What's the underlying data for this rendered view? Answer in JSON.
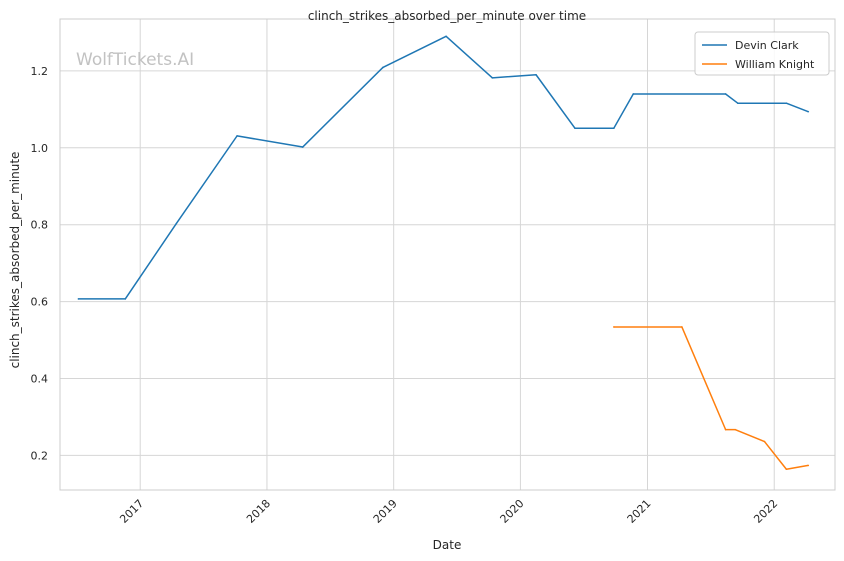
{
  "chart_data": {
    "type": "line",
    "title": "clinch_strikes_absorbed_per_minute over time",
    "xlabel": "Date",
    "ylabel": "clinch_strikes_absorbed_per_minute",
    "watermark": "WolfTickets.AI",
    "x_ticks": [
      "2017",
      "2018",
      "2019",
      "2020",
      "2021",
      "2022"
    ],
    "y_ticks": [
      "0.2",
      "0.4",
      "0.6",
      "0.8",
      "1.0",
      "1.2"
    ],
    "xlim": [
      "2016-05-15",
      "2022-06-25"
    ],
    "ylim": [
      0.11,
      1.335
    ],
    "grid": true,
    "legend_position": "top-right",
    "series": [
      {
        "name": "Devin Clark",
        "color": "#1f77b4",
        "x": [
          "2016-07-07",
          "2016-11-19",
          "2017-04-15",
          "2017-10-07",
          "2018-04-14",
          "2018-12-01",
          "2019-06-01",
          "2019-10-12",
          "2020-02-15",
          "2020-06-06",
          "2020-09-26",
          "2020-11-21",
          "2021-08-14",
          "2021-09-18",
          "2022-02-05",
          "2022-04-09"
        ],
        "values": [
          0.607,
          0.607,
          0.803,
          1.031,
          1.002,
          1.209,
          1.29,
          1.182,
          1.19,
          1.051,
          1.051,
          1.14,
          1.14,
          1.116,
          1.116,
          1.094
        ]
      },
      {
        "name": "William Knight",
        "color": "#ff7f0e",
        "x": [
          "2020-09-26",
          "2021-04-10",
          "2021-08-14",
          "2021-09-11",
          "2021-12-04",
          "2022-02-05",
          "2022-04-09"
        ],
        "values": [
          0.534,
          0.534,
          0.267,
          0.267,
          0.236,
          0.164,
          0.174
        ]
      }
    ]
  }
}
